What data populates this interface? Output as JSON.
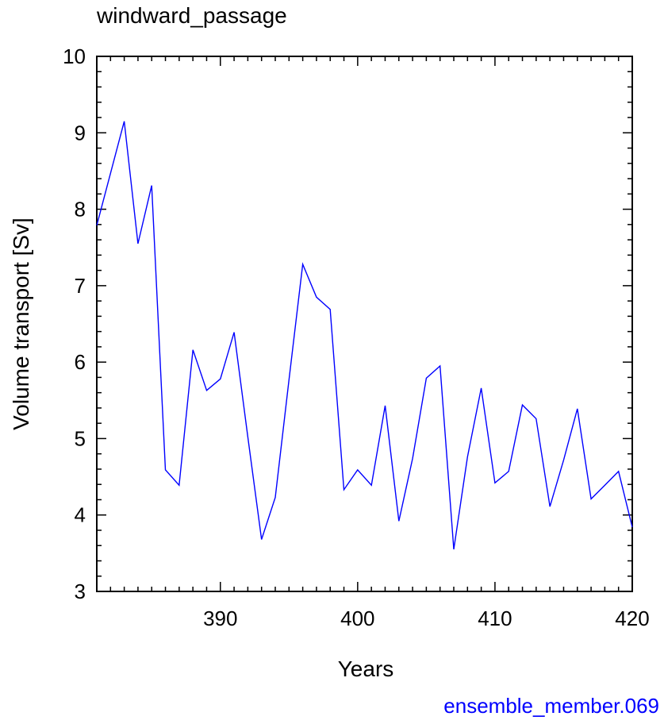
{
  "chart_data": {
    "type": "line",
    "title": "windward_passage",
    "xlabel": "Years",
    "ylabel": "Volume transport [Sv]",
    "xlim": [
      381,
      420
    ],
    "ylim": [
      3,
      10
    ],
    "x_major_ticks": [
      390,
      400,
      410,
      420
    ],
    "y_major_ticks": [
      3,
      4,
      5,
      6,
      7,
      8,
      9,
      10
    ],
    "grid": false,
    "line_color": "#0000ff",
    "series": [
      {
        "x": [
          381,
          382,
          383,
          384,
          385,
          386,
          387,
          388,
          389,
          390,
          391,
          392,
          393,
          394,
          395,
          396,
          397,
          398,
          399,
          400,
          401,
          402,
          403,
          404,
          405,
          406,
          407,
          408,
          409,
          410,
          411,
          412,
          413,
          414,
          415,
          416,
          417,
          418,
          419,
          420
        ],
        "values": [
          7.79,
          8.47,
          9.15,
          7.55,
          8.31,
          4.59,
          4.39,
          6.16,
          5.63,
          5.78,
          6.39,
          5.02,
          3.68,
          4.23,
          5.77,
          7.28,
          6.85,
          6.69,
          4.33,
          4.59,
          4.39,
          5.43,
          3.92,
          4.74,
          5.79,
          5.95,
          3.55,
          4.76,
          5.66,
          4.42,
          4.57,
          5.44,
          5.26,
          4.11,
          4.72,
          5.39,
          4.21,
          4.39,
          4.57,
          3.84
        ]
      }
    ]
  },
  "footer": {
    "text": "ensemble_member.069",
    "color": "#0000ff"
  }
}
